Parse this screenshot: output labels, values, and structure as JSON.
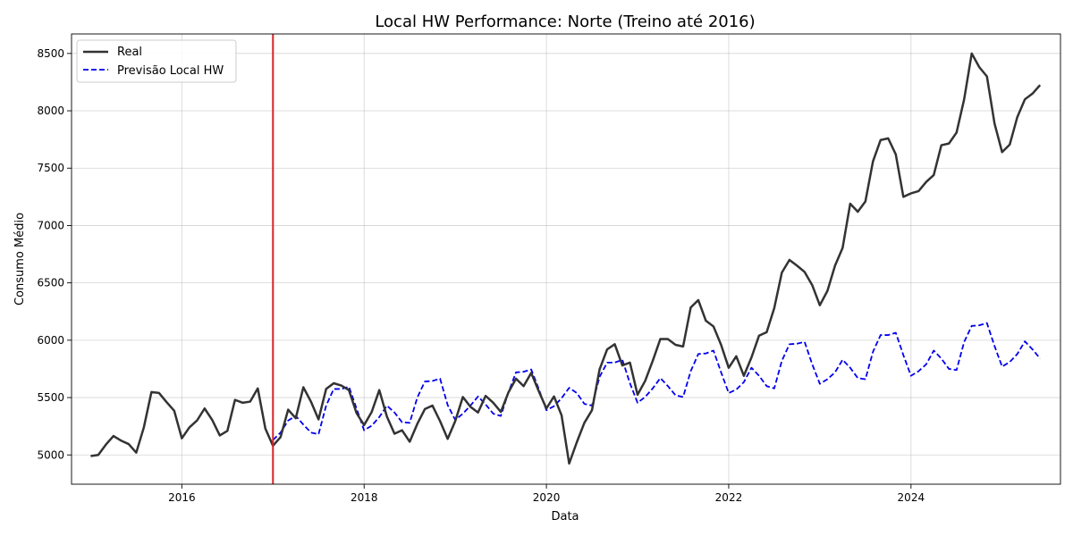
{
  "chart_data": {
    "type": "line",
    "title": "Local HW Performance: Norte (Treino até 2016)",
    "xlabel": "Data",
    "ylabel": "Consumo Médio",
    "xlim": [
      2014.79,
      2025.64
    ],
    "ylim": [
      4745,
      8670
    ],
    "x_ticks": [
      2016,
      2018,
      2020,
      2022,
      2024
    ],
    "x_tick_labels": [
      "2016",
      "2018",
      "2020",
      "2022",
      "2024"
    ],
    "y_ticks": [
      5000,
      5500,
      6000,
      6500,
      7000,
      7500,
      8000,
      8500
    ],
    "y_tick_labels": [
      "5000",
      "5500",
      "6000",
      "6500",
      "7000",
      "7500",
      "8000",
      "8500"
    ],
    "grid": true,
    "legend_position": "top-left",
    "train_end": 2017.0,
    "train_end_color": "#d62728",
    "series": [
      {
        "name": "Real",
        "color": "#333333",
        "dash": "solid",
        "x_start": 2015.0,
        "x_step": 0.08333,
        "values": [
          4990,
          5000,
          5090,
          5165,
          5125,
          5095,
          5020,
          5240,
          5548,
          5540,
          5460,
          5385,
          5145,
          5240,
          5300,
          5405,
          5305,
          5170,
          5210,
          5480,
          5455,
          5465,
          5580,
          5230,
          5080,
          5155,
          5395,
          5320,
          5590,
          5465,
          5310,
          5575,
          5625,
          5605,
          5565,
          5365,
          5260,
          5375,
          5565,
          5335,
          5185,
          5215,
          5115,
          5270,
          5400,
          5430,
          5295,
          5140,
          5295,
          5505,
          5420,
          5370,
          5515,
          5455,
          5375,
          5545,
          5665,
          5600,
          5715,
          5555,
          5405,
          5510,
          5345,
          4925,
          5110,
          5280,
          5390,
          5745,
          5920,
          5965,
          5780,
          5805,
          5525,
          5645,
          5820,
          6010,
          6010,
          5960,
          5945,
          6285,
          6350,
          6170,
          6120,
          5960,
          5760,
          5860,
          5690,
          5850,
          6040,
          6070,
          6280,
          6590,
          6700,
          6650,
          6595,
          6480,
          6305,
          6430,
          6650,
          6805,
          7190,
          7120,
          7210,
          7560,
          7745,
          7760,
          7620,
          7250,
          7280,
          7300,
          7380,
          7440,
          7700,
          7715,
          7810,
          8100,
          8500,
          8380,
          8300,
          7890,
          7640,
          7705,
          7945,
          8100,
          8150,
          8225
        ]
      },
      {
        "name": "Previsão Local HW",
        "color": "#0000ee",
        "dash": "dashed",
        "x_start": 2017.0,
        "x_step": 0.08333,
        "values": [
          5130,
          5195,
          5300,
          5340,
          5265,
          5195,
          5180,
          5430,
          5575,
          5575,
          5595,
          5405,
          5215,
          5255,
          5330,
          5430,
          5370,
          5285,
          5280,
          5500,
          5640,
          5645,
          5665,
          5435,
          5305,
          5360,
          5430,
          5510,
          5440,
          5360,
          5340,
          5545,
          5720,
          5725,
          5745,
          5575,
          5390,
          5425,
          5495,
          5585,
          5540,
          5445,
          5430,
          5680,
          5805,
          5805,
          5830,
          5625,
          5455,
          5505,
          5580,
          5670,
          5600,
          5520,
          5505,
          5730,
          5880,
          5885,
          5910,
          5720,
          5540,
          5570,
          5635,
          5760,
          5690,
          5600,
          5580,
          5820,
          5965,
          5970,
          5985,
          5790,
          5620,
          5660,
          5720,
          5830,
          5760,
          5670,
          5660,
          5900,
          6045,
          6045,
          6065,
          5870,
          5690,
          5730,
          5790,
          5910,
          5840,
          5750,
          5740,
          5985,
          6125,
          6130,
          6150,
          5950,
          5770,
          5810,
          5880,
          5990,
          5920,
          5840
        ]
      }
    ]
  }
}
